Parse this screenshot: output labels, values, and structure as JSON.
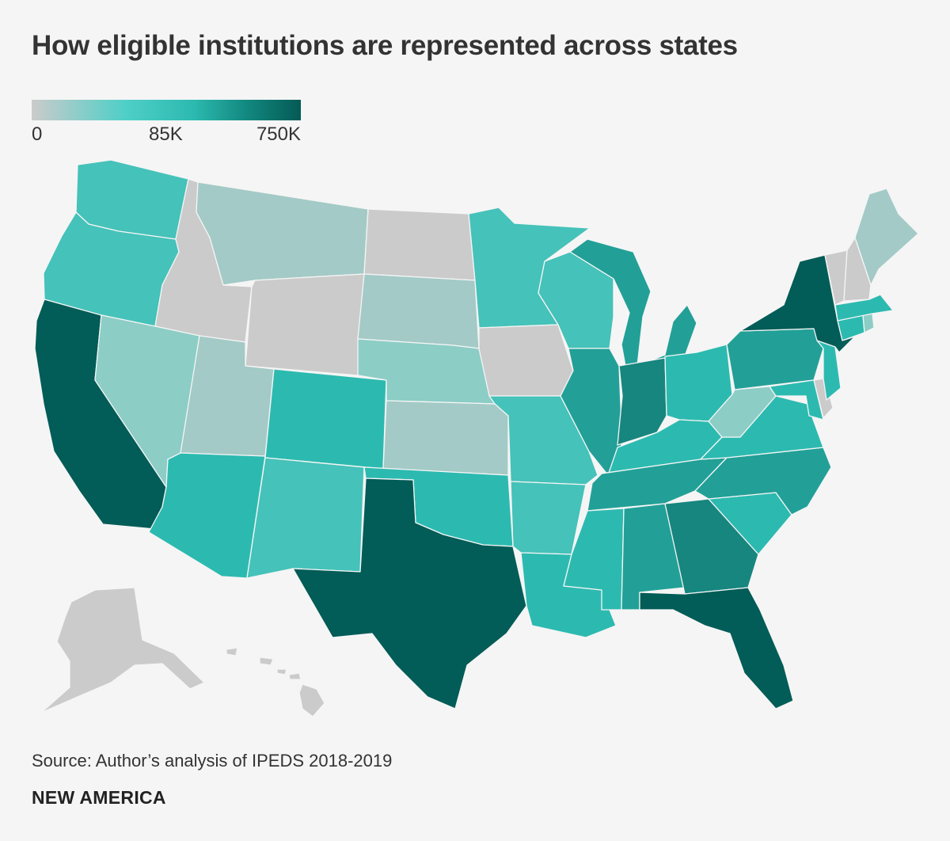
{
  "title": "How eligible institutions are represented across states",
  "legend": {
    "min_label": "0",
    "mid_label": "85K",
    "max_label": "750K",
    "min_value": 0,
    "mid_value": 85000,
    "max_value": 750000
  },
  "colors": {
    "background": "#f5f5f5",
    "no_data": "#cbcbcb",
    "light": "#a3cac6",
    "low": "#8ccdc6",
    "medium_low": "#45c2b9",
    "medium": "#2cbab0",
    "medium_high": "#22a097",
    "high": "#17867e",
    "highest": "#025c57"
  },
  "map_data": {
    "type": "choropleth",
    "states": [
      {
        "id": "WA",
        "level": "medium_low"
      },
      {
        "id": "OR",
        "level": "medium_low"
      },
      {
        "id": "CA",
        "level": "highest"
      },
      {
        "id": "ID",
        "level": "no_data"
      },
      {
        "id": "NV",
        "level": "low"
      },
      {
        "id": "MT",
        "level": "light"
      },
      {
        "id": "WY",
        "level": "no_data"
      },
      {
        "id": "UT",
        "level": "light"
      },
      {
        "id": "AZ",
        "level": "medium"
      },
      {
        "id": "CO",
        "level": "medium"
      },
      {
        "id": "NM",
        "level": "medium_low"
      },
      {
        "id": "ND",
        "level": "no_data"
      },
      {
        "id": "SD",
        "level": "light"
      },
      {
        "id": "NE",
        "level": "low"
      },
      {
        "id": "KS",
        "level": "light"
      },
      {
        "id": "OK",
        "level": "medium"
      },
      {
        "id": "TX",
        "level": "highest"
      },
      {
        "id": "MN",
        "level": "medium_low"
      },
      {
        "id": "IA",
        "level": "no_data"
      },
      {
        "id": "MO",
        "level": "medium_low"
      },
      {
        "id": "AR",
        "level": "medium_low"
      },
      {
        "id": "LA",
        "level": "medium"
      },
      {
        "id": "WI",
        "level": "medium_low"
      },
      {
        "id": "IL",
        "level": "medium_high"
      },
      {
        "id": "MI",
        "level": "medium_high"
      },
      {
        "id": "IN",
        "level": "high"
      },
      {
        "id": "OH",
        "level": "medium"
      },
      {
        "id": "KY",
        "level": "medium"
      },
      {
        "id": "TN",
        "level": "medium_high"
      },
      {
        "id": "MS",
        "level": "medium"
      },
      {
        "id": "AL",
        "level": "medium_high"
      },
      {
        "id": "GA",
        "level": "high"
      },
      {
        "id": "FL",
        "level": "highest"
      },
      {
        "id": "SC",
        "level": "medium"
      },
      {
        "id": "NC",
        "level": "medium_high"
      },
      {
        "id": "VA",
        "level": "medium"
      },
      {
        "id": "WV",
        "level": "low"
      },
      {
        "id": "PA",
        "level": "medium_high"
      },
      {
        "id": "NY",
        "level": "highest"
      },
      {
        "id": "NJ",
        "level": "medium"
      },
      {
        "id": "MD",
        "level": "medium"
      },
      {
        "id": "DE",
        "level": "no_data"
      },
      {
        "id": "CT",
        "level": "medium"
      },
      {
        "id": "RI",
        "level": "low"
      },
      {
        "id": "MA",
        "level": "medium"
      },
      {
        "id": "VT",
        "level": "no_data"
      },
      {
        "id": "NH",
        "level": "no_data"
      },
      {
        "id": "ME",
        "level": "light"
      },
      {
        "id": "AK",
        "level": "no_data"
      },
      {
        "id": "HI",
        "level": "no_data"
      }
    ]
  },
  "source": "Source: Author’s analysis of IPEDS 2018-2019",
  "brand": "NEW AMERICA"
}
